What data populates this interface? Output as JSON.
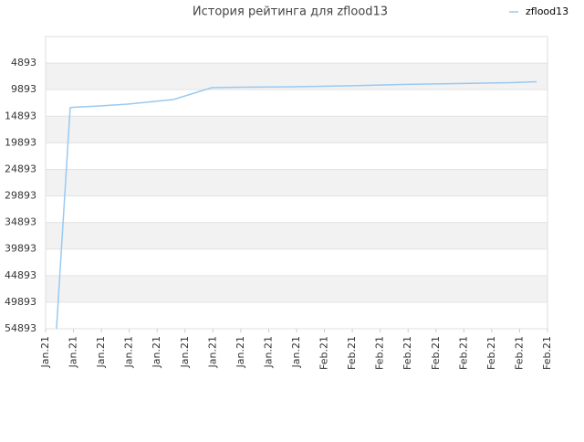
{
  "chart_data": {
    "type": "line",
    "title": "История рейтинга для zflood13",
    "x": [
      0.39,
      0.88,
      0.98,
      1.96,
      2.95,
      3.93,
      4.58,
      5.96,
      6.94,
      8.9,
      10.8,
      12.77,
      14.73,
      16.69,
      17.61
    ],
    "series": [
      {
        "name": "zflood13",
        "color": "#99c9f2",
        "values": [
          54893,
          13299,
          13213,
          12955,
          12612,
          12096,
          11752,
          9518,
          9432,
          9346,
          9174,
          8917,
          8745,
          8573,
          8401
        ]
      }
    ],
    "xlim": [
      0,
      18
    ],
    "xticks": [
      {
        "value": 0,
        "label": "Jan.21"
      },
      {
        "value": 1,
        "label": "Jan.21"
      },
      {
        "value": 2,
        "label": "Jan.21"
      },
      {
        "value": 3,
        "label": "Jan.21"
      },
      {
        "value": 4,
        "label": "Jan.21"
      },
      {
        "value": 5,
        "label": "Jan.21"
      },
      {
        "value": 6,
        "label": "Jan.21"
      },
      {
        "value": 7,
        "label": "Jan.21"
      },
      {
        "value": 8,
        "label": "Jan.21"
      },
      {
        "value": 9,
        "label": "Jan.21"
      },
      {
        "value": 10,
        "label": "Feb.21"
      },
      {
        "value": 11,
        "label": "Feb.21"
      },
      {
        "value": 12,
        "label": "Feb.21"
      },
      {
        "value": 13,
        "label": "Feb.21"
      },
      {
        "value": 14,
        "label": "Feb.21"
      },
      {
        "value": 15,
        "label": "Feb.21"
      },
      {
        "value": 16,
        "label": "Feb.21"
      },
      {
        "value": 17,
        "label": "Feb.21"
      },
      {
        "value": 18,
        "label": "Feb.21"
      }
    ],
    "ylim": [
      54893,
      -107
    ],
    "yticks": [
      4893,
      9893,
      14893,
      19893,
      24893,
      29893,
      34893,
      39893,
      44893,
      49893,
      54893
    ],
    "grid": true,
    "legend": "top-right"
  }
}
